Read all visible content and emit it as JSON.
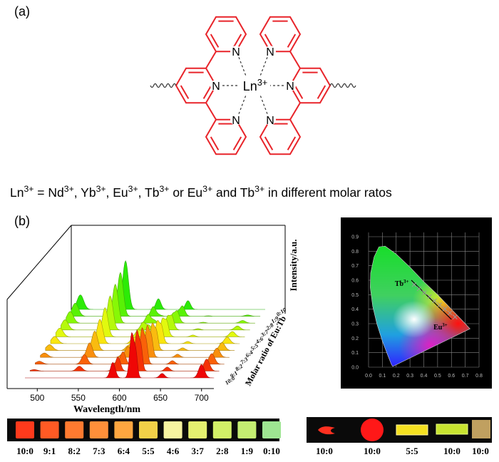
{
  "panel_a": {
    "label": "(a)",
    "structure": {
      "nitrogen_labels": [
        "N",
        "N",
        "N",
        "N",
        "N",
        "N"
      ],
      "center": {
        "text": "Ln",
        "sup": "3+"
      }
    },
    "caption": [
      {
        "text": "Ln",
        "sup": "3+"
      },
      {
        "text": " = Nd",
        "sup": "3+"
      },
      {
        "text": ", Yb",
        "sup": "3+"
      },
      {
        "text": ", Eu",
        "sup": "3+"
      },
      {
        "text": ", Tb",
        "sup": "3+"
      },
      {
        "text": " or Eu",
        "sup": "3+"
      },
      {
        "text": " and Tb",
        "sup": "3+"
      },
      {
        "text": " in different molar ratos"
      }
    ]
  },
  "panel_b": {
    "label": "(b)",
    "spectra": {
      "x_label": "Wavelength/nm",
      "y_label": "Intensity/a.u.",
      "z_label": "Molar ratio of Eu:Tb",
      "xlim": [
        485,
        715
      ],
      "xticks": [
        500,
        550,
        600,
        650,
        700
      ],
      "ratios": [
        "10:0",
        "9:1",
        "8:2",
        "7:3",
        "6:4",
        "5:5",
        "4:6",
        "3:7",
        "2:8",
        "1:9",
        "0:10"
      ]
    },
    "cie": {
      "xlim": [
        0,
        0.8
      ],
      "ylim": [
        0,
        0.9
      ],
      "grid": true,
      "xticks": [
        {
          "value": 0,
          "label": "0.0"
        },
        0.1,
        0.2,
        0.3,
        0.4,
        0.5,
        0.6,
        0.7,
        0.8
      ],
      "yticks": [
        {
          "value": 0,
          "label": "0.0"
        },
        0.1,
        0.2,
        0.3,
        0.4,
        0.5,
        0.6,
        0.7,
        0.8,
        0.9
      ],
      "labels": [
        {
          "text": "Tb",
          "sup": "3+"
        },
        {
          "text": "Eu",
          "sup": "3+"
        }
      ]
    },
    "photos_left": {
      "labels": [
        "10:0",
        "9:1",
        "8:2",
        "7:3",
        "6:4",
        "5:5",
        "4:6",
        "3:7",
        "2:8",
        "1:9",
        "0:10"
      ],
      "colors": [
        "#ff3a1c",
        "#ff5a24",
        "#ff7a30",
        "#ff8f3a",
        "#ffa640",
        "#f2d048",
        "#f6f3a0",
        "#e4f070",
        "#d2ef68",
        "#c4ee72",
        "#9ee592"
      ]
    },
    "photos_right": {
      "labels": [
        "10:0",
        "10:0",
        "5:5",
        "10:0",
        "10:0"
      ]
    }
  }
}
